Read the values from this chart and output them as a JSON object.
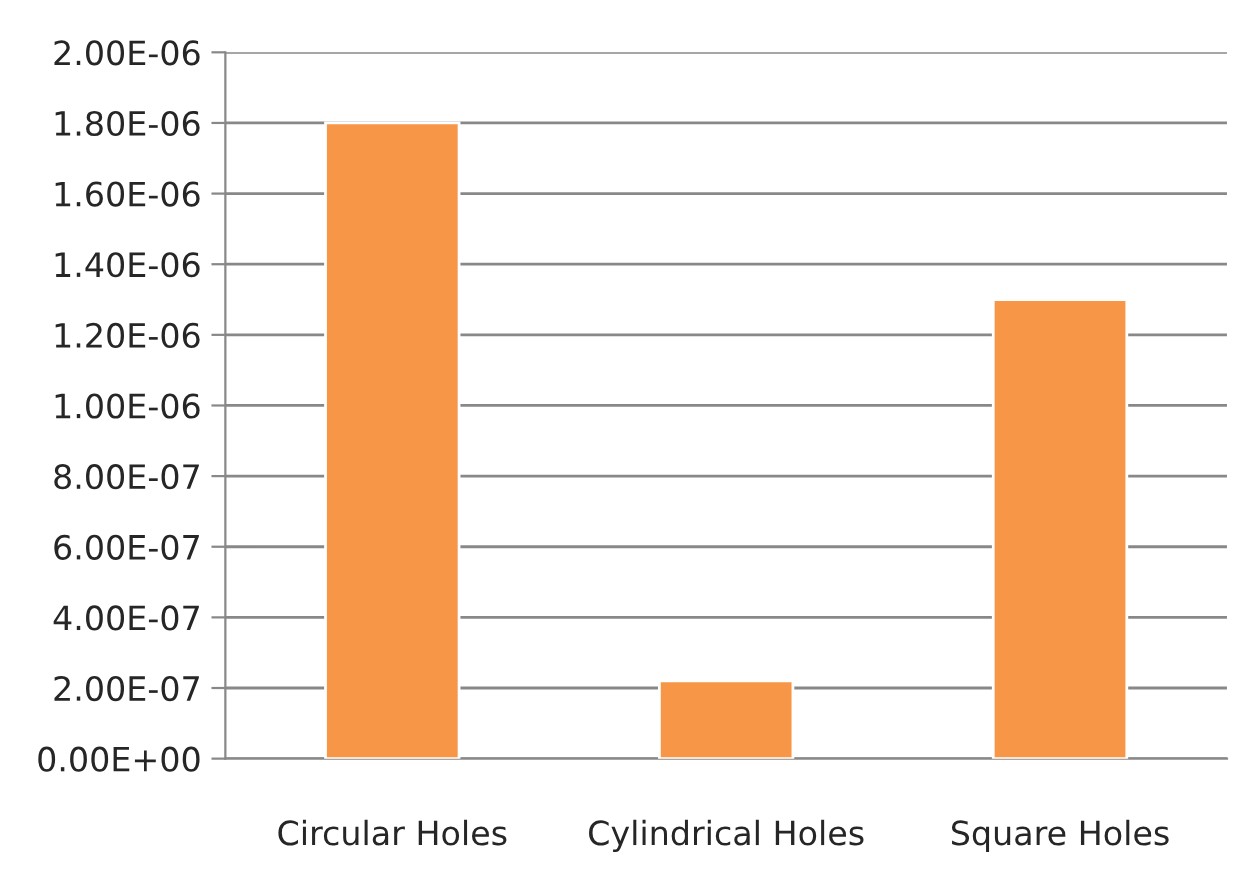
{
  "chart_data": {
    "type": "bar",
    "categories": [
      "Circular Holes",
      "Cylindrical Holes",
      "Square Holes"
    ],
    "values": [
      1.8e-06,
      2.2e-07,
      1.3e-06
    ],
    "color": "#f79646",
    "ylim": [
      0,
      2e-06
    ],
    "yticks": [
      {
        "value": 0,
        "label": "0.00E+00"
      },
      {
        "value": 2e-07,
        "label": "2.00E-07"
      },
      {
        "value": 4e-07,
        "label": "4.00E-07"
      },
      {
        "value": 6e-07,
        "label": "6.00E-07"
      },
      {
        "value": 8e-07,
        "label": "8.00E-07"
      },
      {
        "value": 1e-06,
        "label": "1.00E-06"
      },
      {
        "value": 1.2e-06,
        "label": "1.20E-06"
      },
      {
        "value": 1.4e-06,
        "label": "1.40E-06"
      },
      {
        "value": 1.6e-06,
        "label": "1.60E-06"
      },
      {
        "value": 1.8e-06,
        "label": "1.80E-06"
      },
      {
        "value": 2e-06,
        "label": "2.00E-06"
      }
    ],
    "grid": "y",
    "legend": false
  }
}
